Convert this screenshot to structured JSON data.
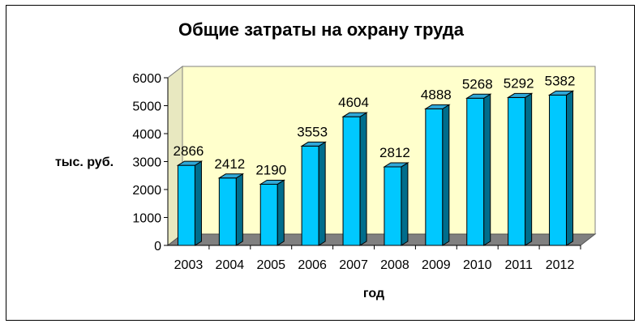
{
  "chart_data": {
    "type": "bar",
    "title": "Общие затраты на охрану труда",
    "xlabel": "год",
    "ylabel": "тыс. руб.",
    "categories": [
      "2003",
      "2004",
      "2005",
      "2006",
      "2007",
      "2008",
      "2009",
      "2010",
      "2011",
      "2012"
    ],
    "values": [
      2866,
      2412,
      2190,
      3553,
      4604,
      2812,
      4888,
      5268,
      5292,
      5382
    ],
    "yticks": [
      0,
      1000,
      2000,
      3000,
      4000,
      5000,
      6000
    ],
    "ylim": [
      0,
      6000
    ],
    "grid": false,
    "legend": "none",
    "colors": {
      "bar_front": "#00c8ff",
      "bar_side": "#006d8c",
      "bar_top": "#2fa8d8",
      "wall": "#ffffcc",
      "floor": "#808080"
    }
  }
}
